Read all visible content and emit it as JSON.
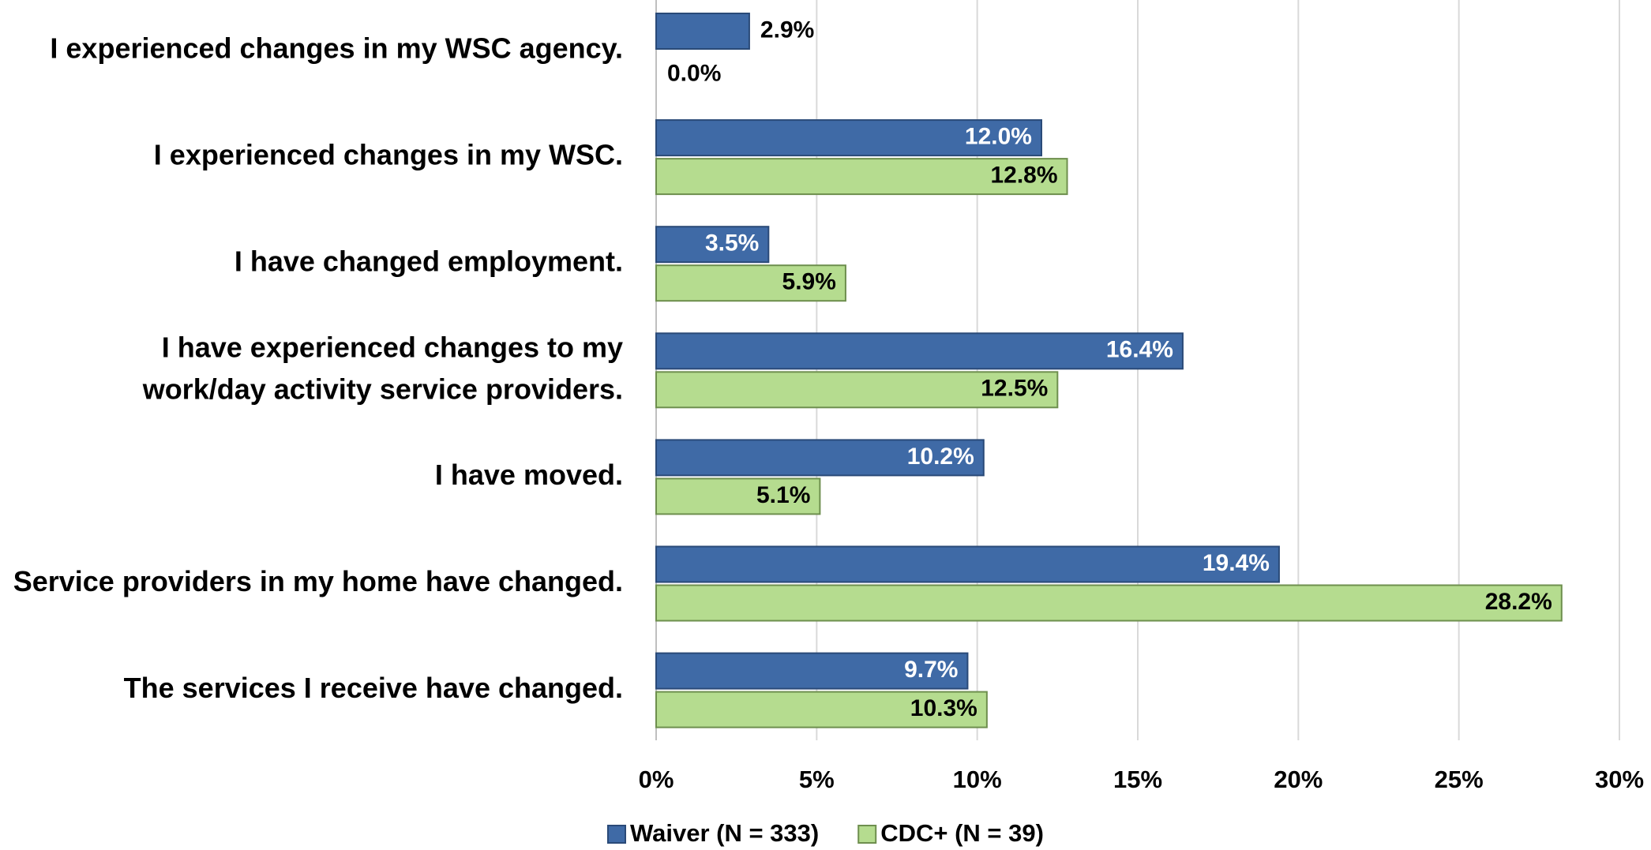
{
  "chart_data": {
    "type": "bar",
    "orientation": "horizontal",
    "categories": [
      "I experienced changes in my WSC agency.",
      "I experienced changes in my WSC.",
      "I have changed employment.",
      [
        "I have experienced changes to my",
        "work/day activity service providers."
      ],
      "I have moved.",
      "Service providers in my home have changed.",
      "The services I receive have changed."
    ],
    "series": [
      {
        "name": "Waiver (N = 333)",
        "color": "#3f6aa6",
        "values": [
          2.9,
          12.0,
          3.5,
          16.4,
          10.2,
          19.4,
          9.7
        ],
        "value_labels": [
          "2.9%",
          "12.0%",
          "3.5%",
          "16.4%",
          "10.2%",
          "19.4%",
          "9.7%"
        ]
      },
      {
        "name": "CDC+ (N = 39)",
        "color": "#b5dc8f",
        "values": [
          0.0,
          12.8,
          5.9,
          12.5,
          5.1,
          28.2,
          10.3
        ],
        "value_labels": [
          "0.0%",
          "12.8%",
          "5.9%",
          "12.5%",
          "5.1%",
          "28.2%",
          "10.3%"
        ]
      }
    ],
    "xlim": [
      0,
      30
    ],
    "xticks": [
      {
        "value": 0,
        "label": "0%"
      },
      {
        "value": 5,
        "label": "5%"
      },
      {
        "value": 10,
        "label": "10%"
      },
      {
        "value": 15,
        "label": "15%"
      },
      {
        "value": 20,
        "label": "20%"
      },
      {
        "value": 25,
        "label": "25%"
      },
      {
        "value": 30,
        "label": "30%"
      }
    ],
    "grid": true,
    "legend": "bottom"
  }
}
